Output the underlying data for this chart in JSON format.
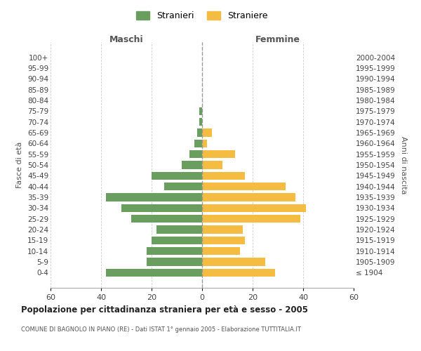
{
  "age_groups": [
    "100+",
    "95-99",
    "90-94",
    "85-89",
    "80-84",
    "75-79",
    "70-74",
    "65-69",
    "60-64",
    "55-59",
    "50-54",
    "45-49",
    "40-44",
    "35-39",
    "30-34",
    "25-29",
    "20-24",
    "15-19",
    "10-14",
    "5-9",
    "0-4"
  ],
  "birth_years": [
    "≤ 1904",
    "1905-1909",
    "1910-1914",
    "1915-1919",
    "1920-1924",
    "1925-1929",
    "1930-1934",
    "1935-1939",
    "1940-1944",
    "1945-1949",
    "1950-1954",
    "1955-1959",
    "1960-1964",
    "1965-1969",
    "1970-1974",
    "1975-1979",
    "1980-1984",
    "1985-1989",
    "1990-1994",
    "1995-1999",
    "2000-2004"
  ],
  "males": [
    0,
    0,
    0,
    0,
    0,
    1,
    1,
    2,
    3,
    5,
    8,
    20,
    15,
    38,
    32,
    28,
    18,
    20,
    22,
    22,
    38
  ],
  "females": [
    0,
    0,
    0,
    0,
    0,
    0,
    0,
    4,
    2,
    13,
    8,
    17,
    33,
    37,
    41,
    39,
    16,
    17,
    15,
    25,
    29
  ],
  "male_color": "#6a9e5e",
  "female_color": "#f5bc42",
  "title": "Popolazione per cittadinanza straniera per età e sesso - 2005",
  "subtitle": "COMUNE DI BAGNOLO IN PIANO (RE) - Dati ISTAT 1° gennaio 2005 - Elaborazione TUTTITALIA.IT",
  "xlabel_left": "Maschi",
  "xlabel_right": "Femmine",
  "ylabel_left": "Fasce di età",
  "ylabel_right": "Anni di nascita",
  "xlim": 60,
  "legend_stranieri": "Stranieri",
  "legend_straniere": "Straniere",
  "background_color": "#ffffff",
  "grid_color": "#cccccc"
}
